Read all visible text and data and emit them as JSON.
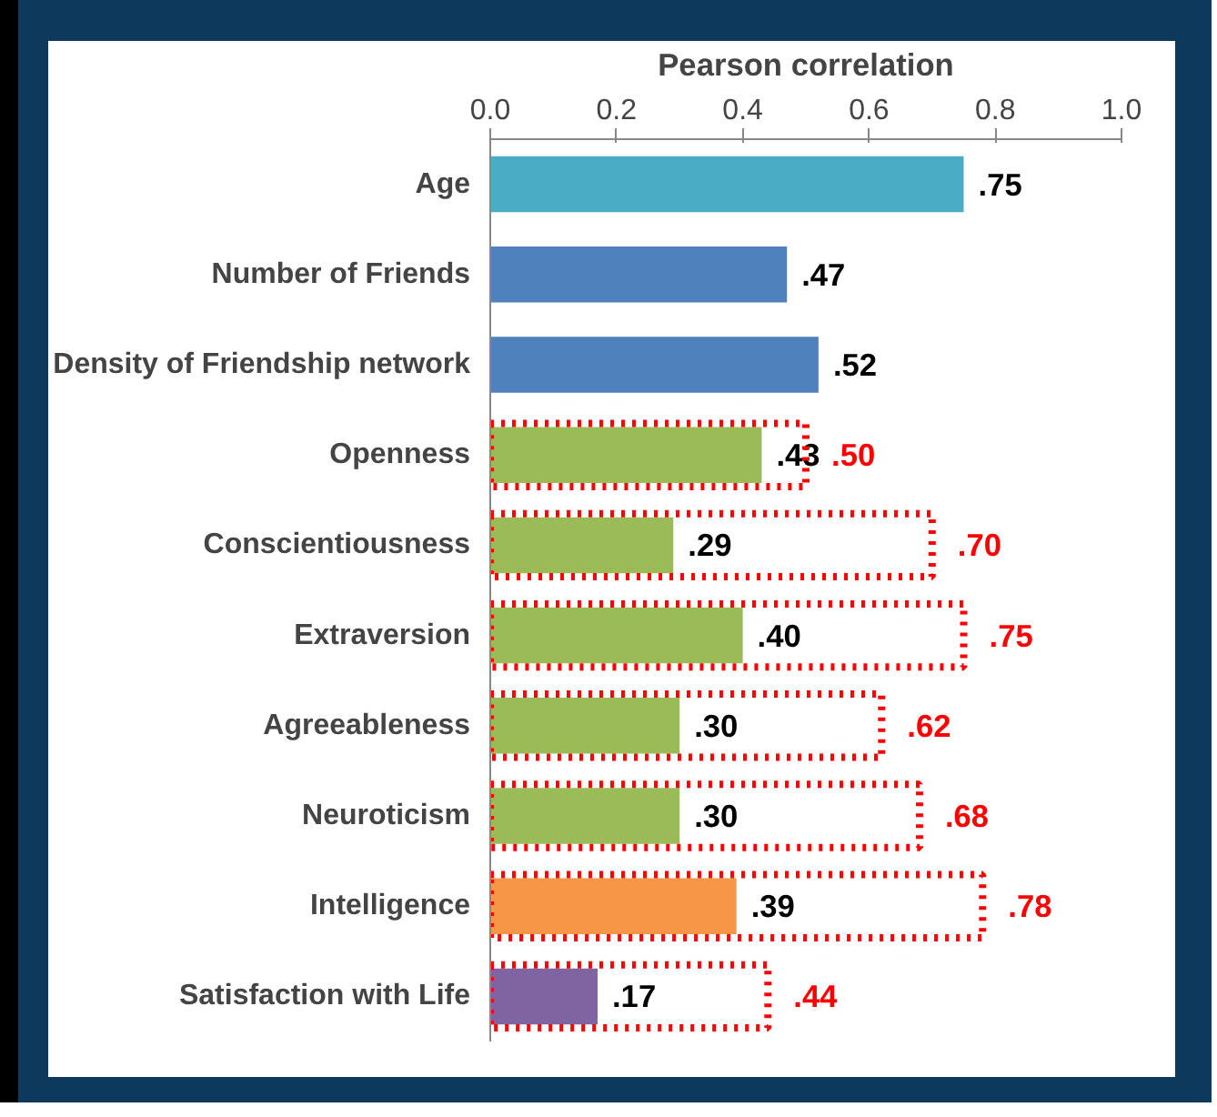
{
  "chart_data": {
    "type": "bar",
    "orientation": "horizontal",
    "xlabel": "Pearson correlation",
    "categories": [
      "Age",
      "Number of Friends",
      "Density of Friendship network",
      "Openness",
      "Conscientiousness",
      "Extraversion",
      "Agreeableness",
      "Neuroticism",
      "Intelligence",
      "Satisfaction with Life"
    ],
    "series": [
      {
        "colors": [
          "#4bacc6",
          "#4f81bd",
          "#4f81bd",
          "#9bbb59",
          "#9bbb59",
          "#9bbb59",
          "#9bbb59",
          "#9bbb59",
          "#f79646",
          "#8064a2"
        ],
        "values": [
          0.75,
          0.47,
          0.52,
          0.43,
          0.29,
          0.4,
          0.3,
          0.3,
          0.39,
          0.17
        ],
        "value_labels": [
          ".75",
          ".47",
          ".52",
          ".43",
          ".29",
          ".40",
          ".30",
          ".30",
          ".39",
          ".17"
        ]
      },
      {
        "color": "#ff0000",
        "line_style": "dotted",
        "values": [
          null,
          null,
          null,
          0.5,
          0.7,
          0.75,
          0.62,
          0.68,
          0.78,
          0.44
        ],
        "value_labels": [
          null,
          null,
          null,
          ".50",
          ".70",
          ".75",
          ".62",
          ".68",
          ".78",
          ".44"
        ]
      }
    ],
    "xlim": [
      0,
      1
    ],
    "xticks": [
      {
        "value": 0,
        "label": "0.0"
      },
      {
        "value": 0.2,
        "label": "0.2"
      },
      {
        "value": 0.4,
        "label": "0.4"
      },
      {
        "value": 0.6,
        "label": "0.6"
      },
      {
        "value": 0.8,
        "label": "0.8"
      },
      {
        "value": 1,
        "label": "1.0"
      }
    ],
    "grid": false
  }
}
